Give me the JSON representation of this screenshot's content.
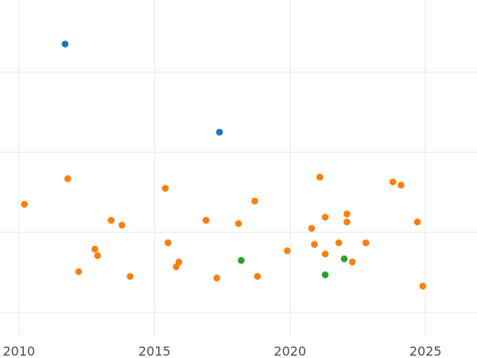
{
  "chart_data": {
    "type": "scatter",
    "title": "",
    "xlabel": "",
    "ylabel": "",
    "xlim": [
      2009.3,
      2026.9
    ],
    "ylim": [
      -0.3,
      3.9
    ],
    "x_ticks": [
      2010,
      2015,
      2020,
      2025
    ],
    "y_gridlines": [
      0,
      1,
      2,
      3,
      4
    ],
    "y_tick_labels_shown": false,
    "grid": true,
    "legend": "none",
    "series": [
      {
        "color": "#1f77b4",
        "points": [
          {
            "x": 2011.7,
            "y": 3.35
          },
          {
            "x": 2017.4,
            "y": 2.25
          }
        ]
      },
      {
        "color": "#ff7f0e",
        "points": [
          {
            "x": 2010.2,
            "y": 1.35
          },
          {
            "x": 2011.8,
            "y": 1.67
          },
          {
            "x": 2012.2,
            "y": 0.51
          },
          {
            "x": 2012.8,
            "y": 0.79
          },
          {
            "x": 2012.9,
            "y": 0.71
          },
          {
            "x": 2013.4,
            "y": 1.15
          },
          {
            "x": 2013.8,
            "y": 1.09
          },
          {
            "x": 2014.1,
            "y": 0.45
          },
          {
            "x": 2015.4,
            "y": 1.55
          },
          {
            "x": 2015.5,
            "y": 0.87
          },
          {
            "x": 2015.8,
            "y": 0.57
          },
          {
            "x": 2015.9,
            "y": 0.63
          },
          {
            "x": 2016.9,
            "y": 1.15
          },
          {
            "x": 2017.3,
            "y": 0.43
          },
          {
            "x": 2018.1,
            "y": 1.11
          },
          {
            "x": 2018.7,
            "y": 1.39
          },
          {
            "x": 2018.8,
            "y": 0.45
          },
          {
            "x": 2019.9,
            "y": 0.77
          },
          {
            "x": 2020.8,
            "y": 1.05
          },
          {
            "x": 2020.9,
            "y": 0.85
          },
          {
            "x": 2021.1,
            "y": 1.69
          },
          {
            "x": 2021.3,
            "y": 1.19
          },
          {
            "x": 2021.3,
            "y": 0.73
          },
          {
            "x": 2021.8,
            "y": 0.87
          },
          {
            "x": 2022.1,
            "y": 1.23
          },
          {
            "x": 2022.1,
            "y": 1.13
          },
          {
            "x": 2022.3,
            "y": 0.63
          },
          {
            "x": 2022.8,
            "y": 0.87
          },
          {
            "x": 2023.8,
            "y": 1.63
          },
          {
            "x": 2024.1,
            "y": 1.59
          },
          {
            "x": 2024.7,
            "y": 1.13
          },
          {
            "x": 2024.9,
            "y": 0.33
          }
        ]
      },
      {
        "color": "#2ca02c",
        "points": [
          {
            "x": 2018.2,
            "y": 0.65
          },
          {
            "x": 2021.3,
            "y": 0.47
          },
          {
            "x": 2022.0,
            "y": 0.67
          }
        ]
      }
    ]
  }
}
